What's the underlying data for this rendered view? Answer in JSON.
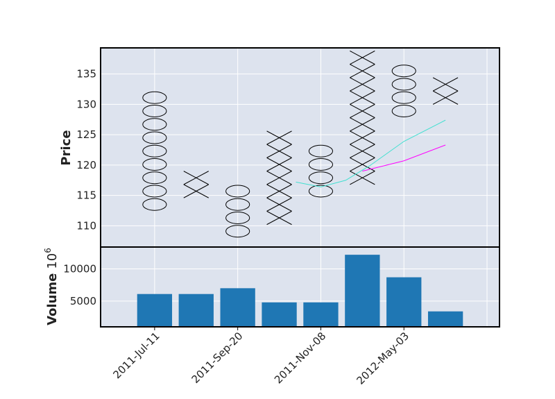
{
  "chart_data": {
    "type": "point-and-figure",
    "price_panel": {
      "ylabel": "Price",
      "yticks": [
        110,
        115,
        120,
        125,
        130,
        135
      ],
      "ylim": [
        106.5,
        139.3
      ],
      "box_size": 2.2,
      "columns": [
        {
          "type": "O",
          "start": 113.5,
          "count": 9
        },
        {
          "type": "X",
          "start": 115.7,
          "count": 2
        },
        {
          "type": "O",
          "start": 109.1,
          "count": 4
        },
        {
          "type": "X",
          "start": 111.3,
          "count": 7
        },
        {
          "type": "O",
          "start": 115.7,
          "count": 4
        },
        {
          "type": "X",
          "start": 117.9,
          "count": 10
        },
        {
          "type": "O",
          "start": 128.9,
          "count": 4
        },
        {
          "type": "X",
          "start": 131.1,
          "count": 2
        }
      ],
      "moving_averages": [
        {
          "color": "#40e0d0",
          "x": [
            3.4,
            4.0,
            4.6,
            5.2,
            6.0,
            7.0
          ],
          "y": [
            117.2,
            116.4,
            117.5,
            120.0,
            123.9,
            127.4
          ]
        },
        {
          "color": "#ff00ff",
          "x": [
            5.0,
            6.0,
            7.0
          ],
          "y": [
            119.0,
            120.7,
            123.3
          ]
        }
      ]
    },
    "volume_panel": {
      "ylabel": "Volume",
      "ylabel_exponent": "6",
      "yticks": [
        5000,
        10000
      ],
      "ylim": [
        1000,
        13400
      ],
      "values": [
        6100,
        6100,
        7000,
        4800,
        4800,
        12200,
        8700,
        3400
      ],
      "bar_color": "#1f77b4"
    },
    "xticks": [
      {
        "pos": 0,
        "label": "2011-Jul-11"
      },
      {
        "pos": 2,
        "label": "2011-Sep-20"
      },
      {
        "pos": 4,
        "label": "2011-Nov-08"
      },
      {
        "pos": 6,
        "label": "2012-May-03"
      }
    ],
    "xlim": [
      -1.3,
      8.3
    ],
    "grid": true,
    "background": "#dde3ee"
  }
}
